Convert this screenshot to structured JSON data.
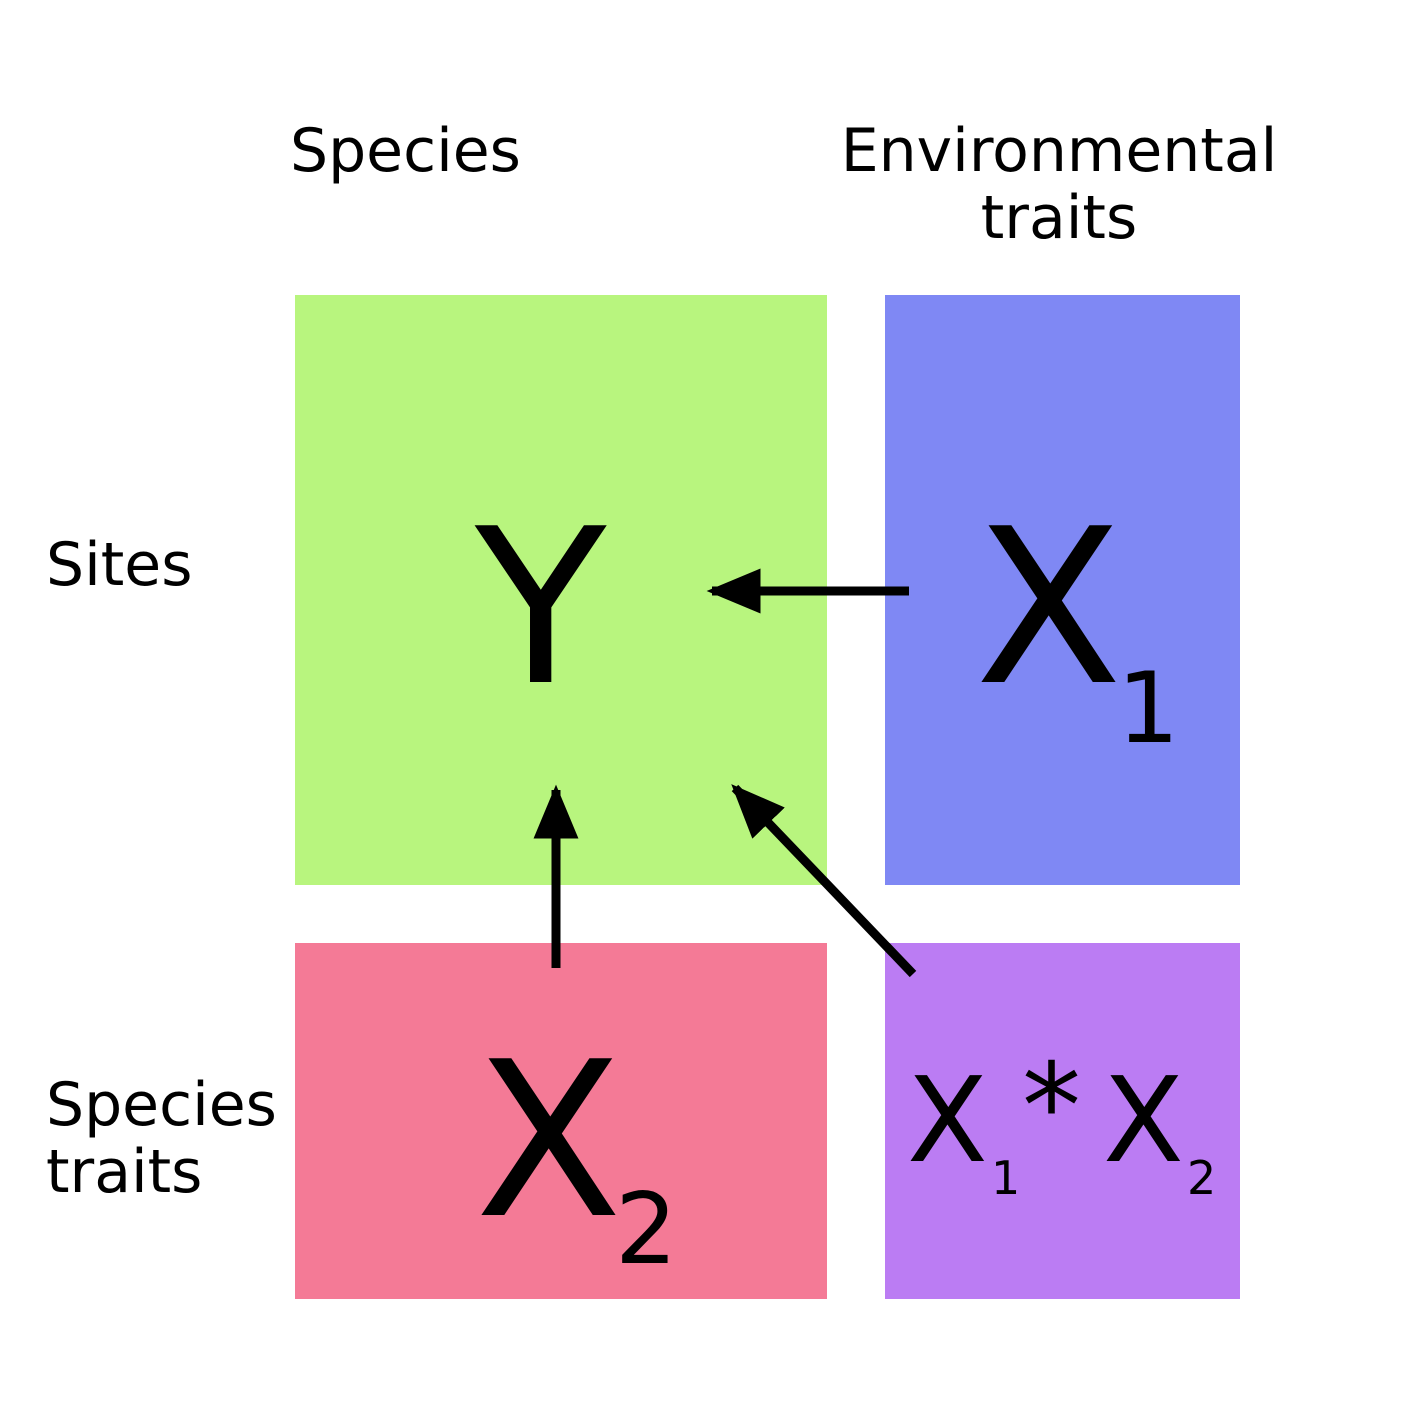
{
  "headers": {
    "species": "Species",
    "environmental_line1": "Environmental",
    "environmental_line2": "traits"
  },
  "row_labels": {
    "sites": "Sites",
    "species_traits_line1": "Species",
    "species_traits_line2": "traits"
  },
  "matrices": {
    "y": {
      "symbol": "Y",
      "color": "#b8f57e"
    },
    "x1": {
      "symbol": "X",
      "subscript": "1",
      "color": "#7f88f4"
    },
    "x2": {
      "symbol": "X",
      "subscript": "2",
      "color": "#f47a96"
    },
    "x1x2": {
      "symbol_a": "X",
      "subscript_a": "1",
      "operator": "*",
      "symbol_b": "X",
      "subscript_b": "2",
      "color": "#bb7cf3"
    }
  },
  "arrow_color": "#000000"
}
